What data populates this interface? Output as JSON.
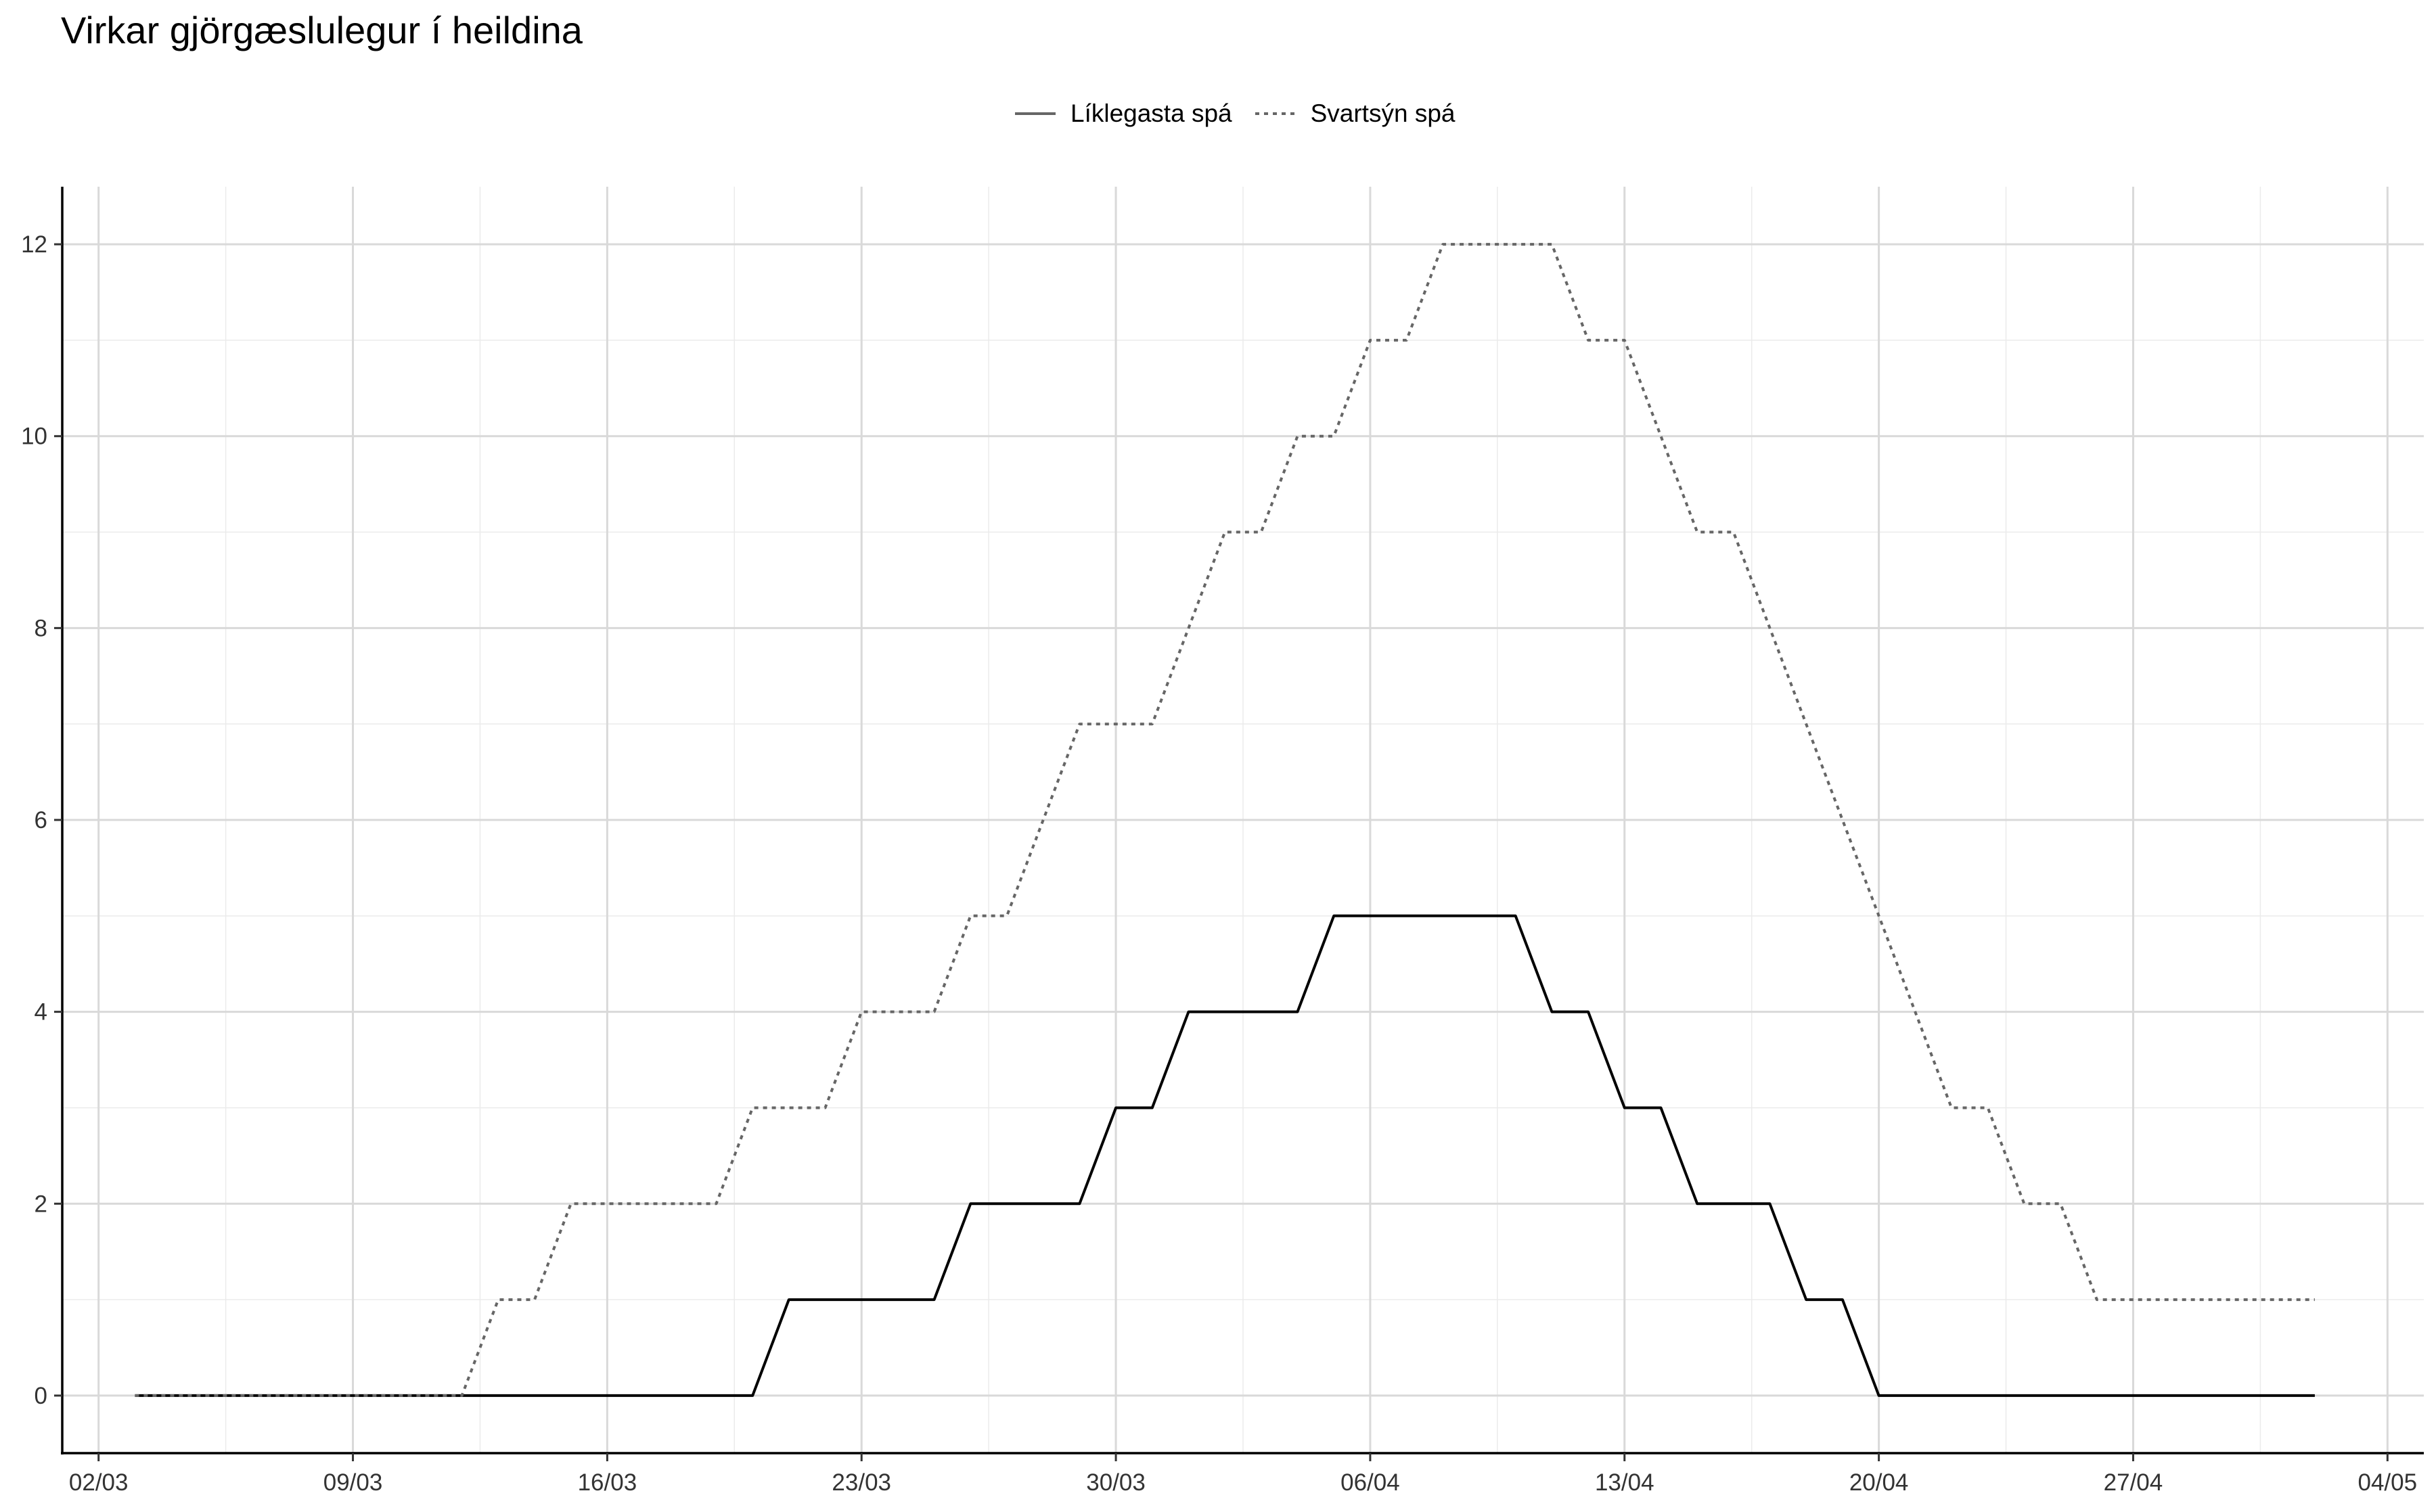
{
  "chart_data": {
    "type": "line",
    "title": "Virkar gjörgæslulegur í heildina",
    "xlabel": "",
    "ylabel": "",
    "x_axis_type": "date",
    "x_tick_labels": [
      "02/03",
      "09/03",
      "16/03",
      "23/03",
      "30/03",
      "06/04",
      "13/04",
      "20/04",
      "27/04",
      "04/05"
    ],
    "y_ticks": [
      0,
      2,
      4,
      6,
      8,
      10,
      12
    ],
    "xlim": [
      "2020-03-01",
      "2020-05-05"
    ],
    "ylim": [
      -0.6,
      12.6
    ],
    "grid": true,
    "legend_position": "top",
    "x": [
      "2020-03-03",
      "2020-03-04",
      "2020-03-05",
      "2020-03-06",
      "2020-03-07",
      "2020-03-08",
      "2020-03-09",
      "2020-03-10",
      "2020-03-11",
      "2020-03-12",
      "2020-03-13",
      "2020-03-14",
      "2020-03-15",
      "2020-03-16",
      "2020-03-17",
      "2020-03-18",
      "2020-03-19",
      "2020-03-20",
      "2020-03-21",
      "2020-03-22",
      "2020-03-23",
      "2020-03-24",
      "2020-03-25",
      "2020-03-26",
      "2020-03-27",
      "2020-03-28",
      "2020-03-29",
      "2020-03-30",
      "2020-03-31",
      "2020-04-01",
      "2020-04-02",
      "2020-04-03",
      "2020-04-04",
      "2020-04-05",
      "2020-04-06",
      "2020-04-07",
      "2020-04-08",
      "2020-04-09",
      "2020-04-10",
      "2020-04-11",
      "2020-04-12",
      "2020-04-13",
      "2020-04-14",
      "2020-04-15",
      "2020-04-16",
      "2020-04-17",
      "2020-04-18",
      "2020-04-19",
      "2020-04-20",
      "2020-04-21",
      "2020-04-22",
      "2020-04-23",
      "2020-04-24",
      "2020-04-25",
      "2020-04-26",
      "2020-04-27",
      "2020-04-28",
      "2020-04-29",
      "2020-04-30",
      "2020-05-01",
      "2020-05-02"
    ],
    "series": [
      {
        "name": "Líklegasta spá",
        "line_style": "solid",
        "color": "#000000",
        "values": [
          0,
          0,
          0,
          0,
          0,
          0,
          0,
          0,
          0,
          0,
          0,
          0,
          0,
          0,
          0,
          0,
          0,
          0,
          1,
          1,
          1,
          1,
          1,
          2,
          2,
          2,
          2,
          3,
          3,
          4,
          4,
          4,
          4,
          5,
          5,
          5,
          5,
          5,
          5,
          4,
          4,
          3,
          3,
          2,
          2,
          2,
          1,
          1,
          0,
          0,
          0,
          0,
          0,
          0,
          0,
          0,
          0,
          0,
          0,
          0,
          0
        ]
      },
      {
        "name": "Svartsýn spá",
        "line_style": "dotted",
        "color": "#666666",
        "values": [
          0,
          0,
          0,
          0,
          0,
          0,
          0,
          0,
          0,
          0,
          1,
          1,
          2,
          2,
          2,
          2,
          2,
          3,
          3,
          3,
          4,
          4,
          4,
          5,
          5,
          6,
          7,
          7,
          7,
          8,
          9,
          9,
          10,
          10,
          11,
          11,
          12,
          12,
          12,
          12,
          11,
          11,
          10,
          9,
          9,
          8,
          7,
          6,
          5,
          4,
          3,
          3,
          2,
          2,
          1,
          1,
          1,
          1,
          1,
          1,
          1
        ]
      }
    ]
  }
}
